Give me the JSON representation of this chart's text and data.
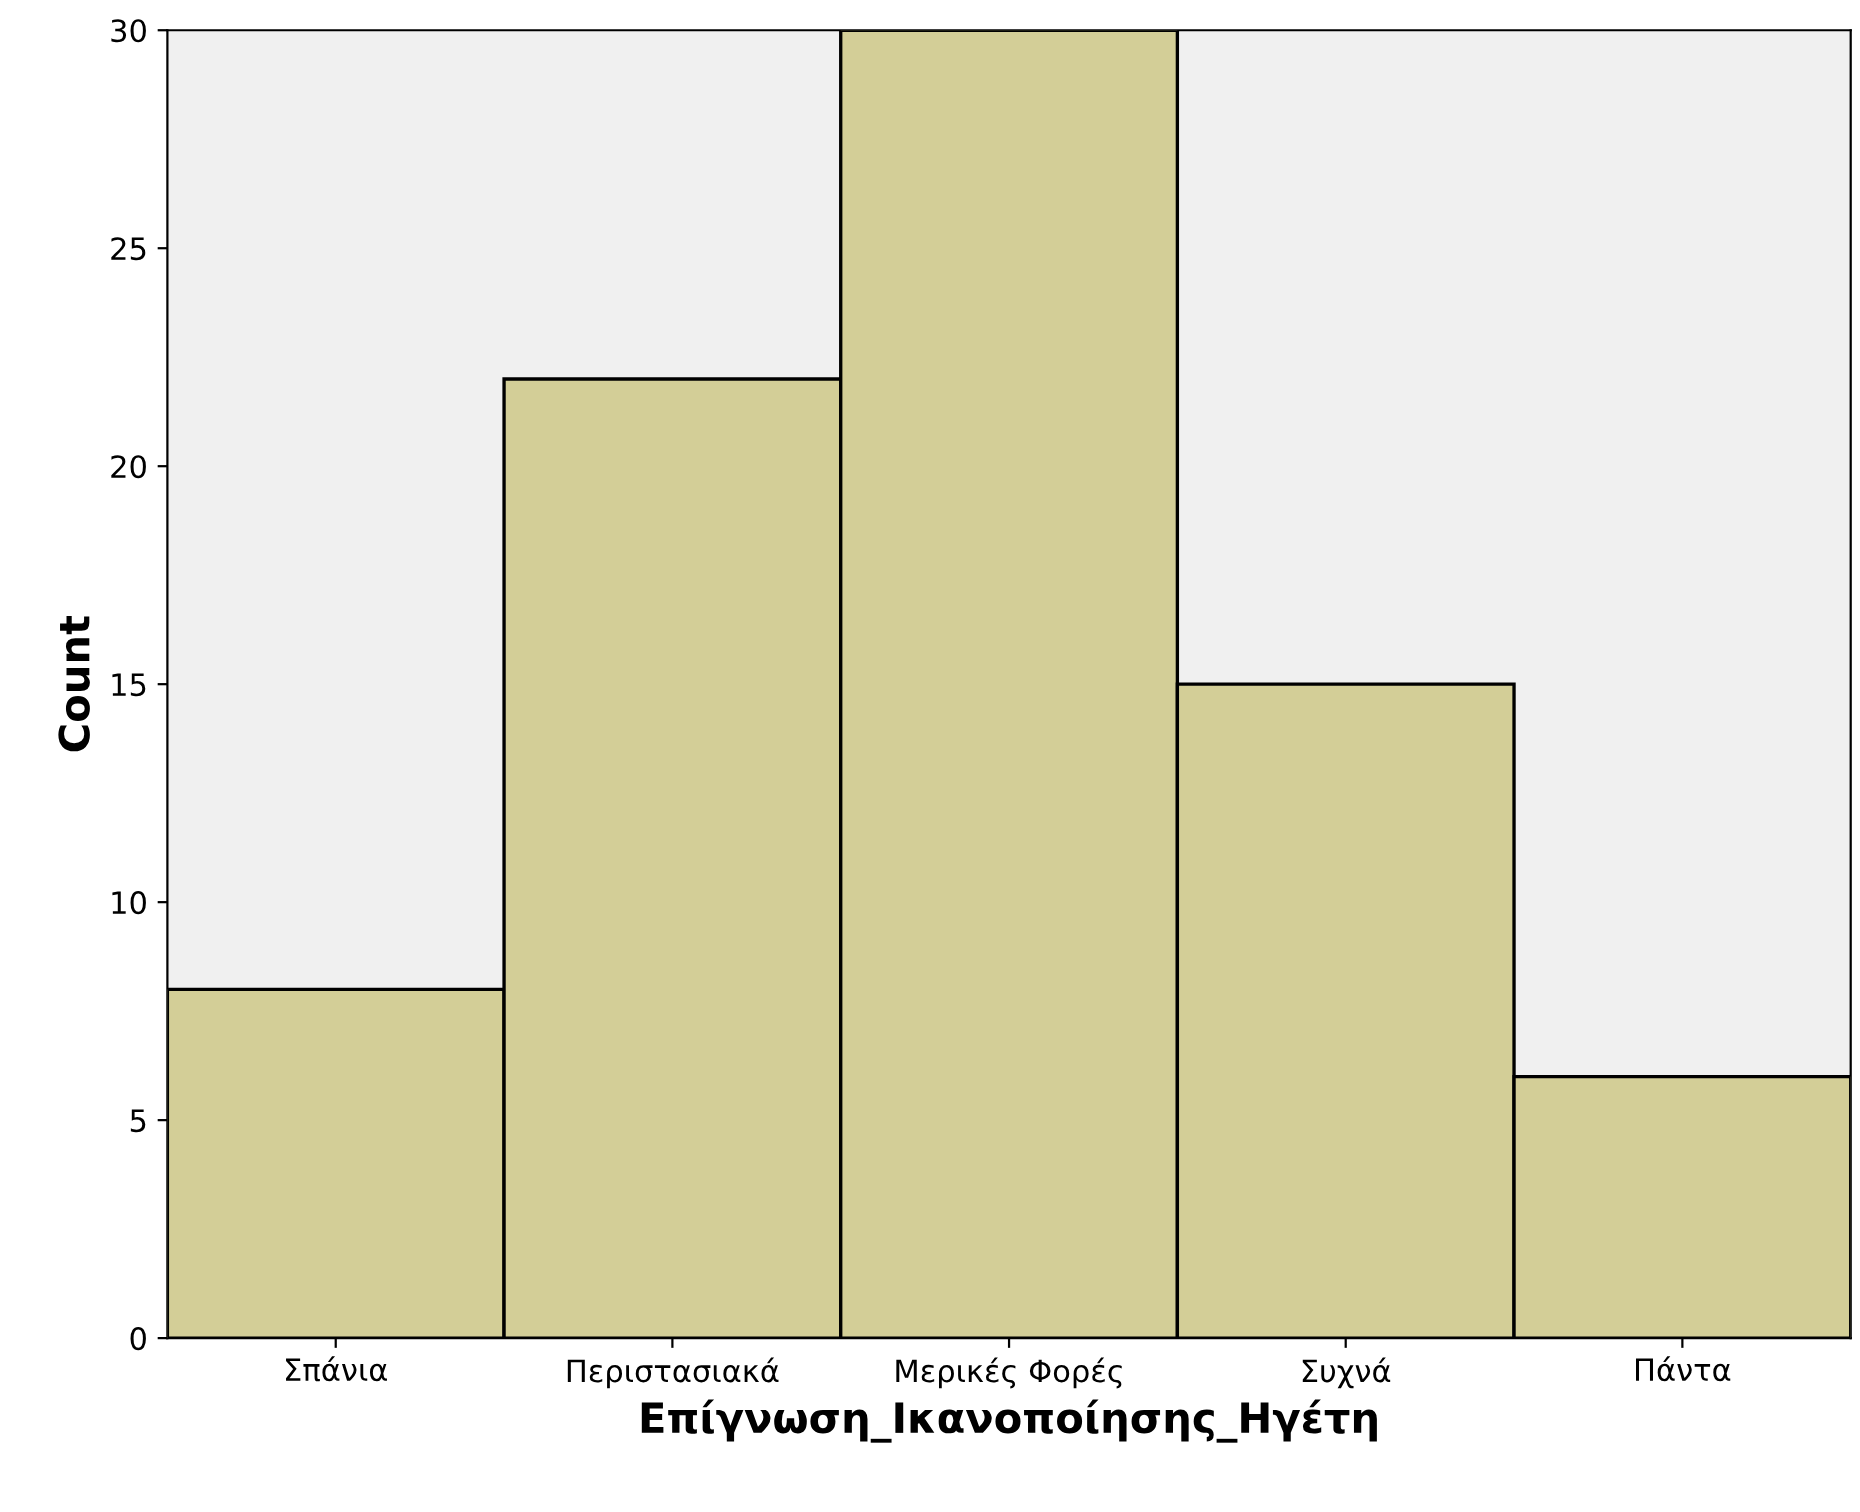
{
  "chart_data": {
    "type": "bar",
    "xlabel": "Επίγνωση_Ικανοποίησης_Ηγέτη",
    "ylabel": "Count",
    "categories": [
      "Σπάνια",
      "Περιστασιακά",
      "Μερικές Φορές",
      "Συχνά",
      "Πάντα"
    ],
    "values": [
      8,
      22,
      30,
      15,
      6
    ],
    "color": "#d3ce97",
    "ylim": [
      0,
      30
    ],
    "yticks": [
      0,
      5,
      10,
      15,
      20,
      25,
      30
    ],
    "grid": false
  }
}
